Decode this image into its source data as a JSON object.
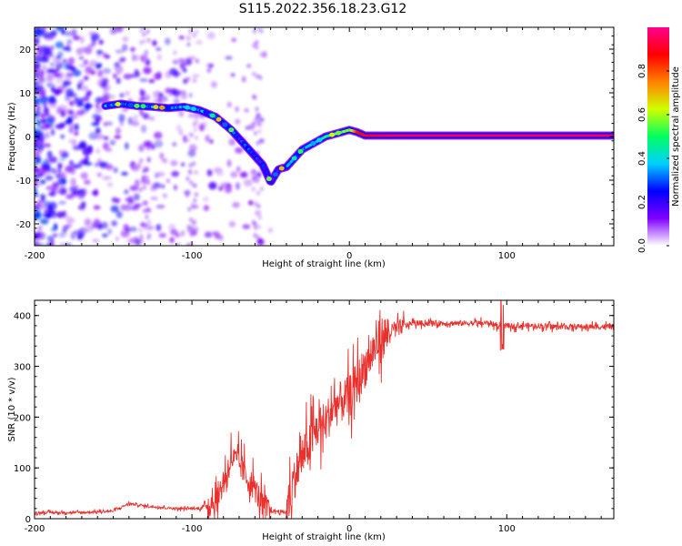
{
  "title": "S115.2022.356.18.23.G12",
  "chart_data": [
    {
      "type": "heatmap",
      "xlabel": "Height of straight line (km)",
      "ylabel": "Frequency (Hz)",
      "xlim": [
        -200,
        168
      ],
      "ylim": [
        -25,
        25
      ],
      "xticks": [
        -200,
        -100,
        0,
        100
      ],
      "yticks": [
        -20,
        -10,
        0,
        10,
        20
      ],
      "colorbar": {
        "label": "Normalized spectral amplitude",
        "range": [
          0,
          1
        ],
        "ticks": [
          0.0,
          0.2,
          0.4,
          0.6,
          0.8
        ],
        "colors": [
          "#ffffff",
          "#8000ff",
          "#0000ff",
          "#00d0ff",
          "#00ff60",
          "#d0ff00",
          "#ff8000",
          "#ff0000",
          "#ff0090"
        ]
      },
      "ridge": {
        "x": [
          -155,
          -145,
          -135,
          -125,
          -115,
          -105,
          -95,
          -85,
          -75,
          -65,
          -55,
          -50,
          -45,
          -40,
          -35,
          -30,
          -25,
          -20,
          -15,
          -10,
          -5,
          0,
          5,
          10,
          30,
          60,
          90,
          120,
          168
        ],
        "y": [
          7,
          7.5,
          7,
          6.8,
          6.5,
          6.8,
          6,
          4.5,
          1.5,
          -2.5,
          -6.5,
          -10.5,
          -7.5,
          -7,
          -5,
          -3,
          -2,
          -1,
          0,
          0.5,
          1,
          1.5,
          1,
          0.2,
          0.2,
          0.2,
          0.2,
          0.2,
          0.2
        ],
        "amplitude": [
          0.3,
          0.35,
          0.3,
          0.3,
          0.35,
          0.3,
          0.3,
          0.25,
          0.25,
          0.25,
          0.2,
          0.15,
          0.2,
          0.25,
          0.3,
          0.35,
          0.35,
          0.4,
          0.45,
          0.5,
          0.55,
          0.5,
          0.85,
          0.9,
          0.95,
          0.95,
          0.95,
          0.95,
          0.95
        ]
      }
    },
    {
      "type": "line",
      "xlabel": "Height of straight line (km)",
      "ylabel": "SNR (10 * v/v)",
      "xlim": [
        -200,
        168
      ],
      "ylim": [
        0,
        430
      ],
      "xticks": [
        -200,
        -100,
        0,
        100
      ],
      "yticks": [
        0,
        100,
        200,
        300,
        400
      ],
      "color": "#e8312d",
      "x": [
        -200,
        -170,
        -150,
        -140,
        -130,
        -110,
        -95,
        -85,
        -80,
        -75,
        -70,
        -65,
        -60,
        -55,
        -50,
        -45,
        -40,
        -35,
        -30,
        -25,
        -20,
        -15,
        -10,
        -5,
        0,
        5,
        10,
        15,
        20,
        25,
        30,
        40,
        50,
        60,
        70,
        80,
        90,
        97,
        100,
        110,
        120,
        130,
        140,
        150,
        160,
        168
      ],
      "y": [
        12,
        12,
        15,
        30,
        25,
        20,
        20,
        35,
        70,
        120,
        110,
        80,
        60,
        25,
        15,
        15,
        12,
        80,
        120,
        150,
        180,
        190,
        220,
        230,
        240,
        270,
        300,
        330,
        355,
        365,
        375,
        385,
        385,
        385,
        385,
        385,
        385,
        375,
        380,
        380,
        380,
        378,
        378,
        378,
        378,
        378
      ]
    }
  ]
}
